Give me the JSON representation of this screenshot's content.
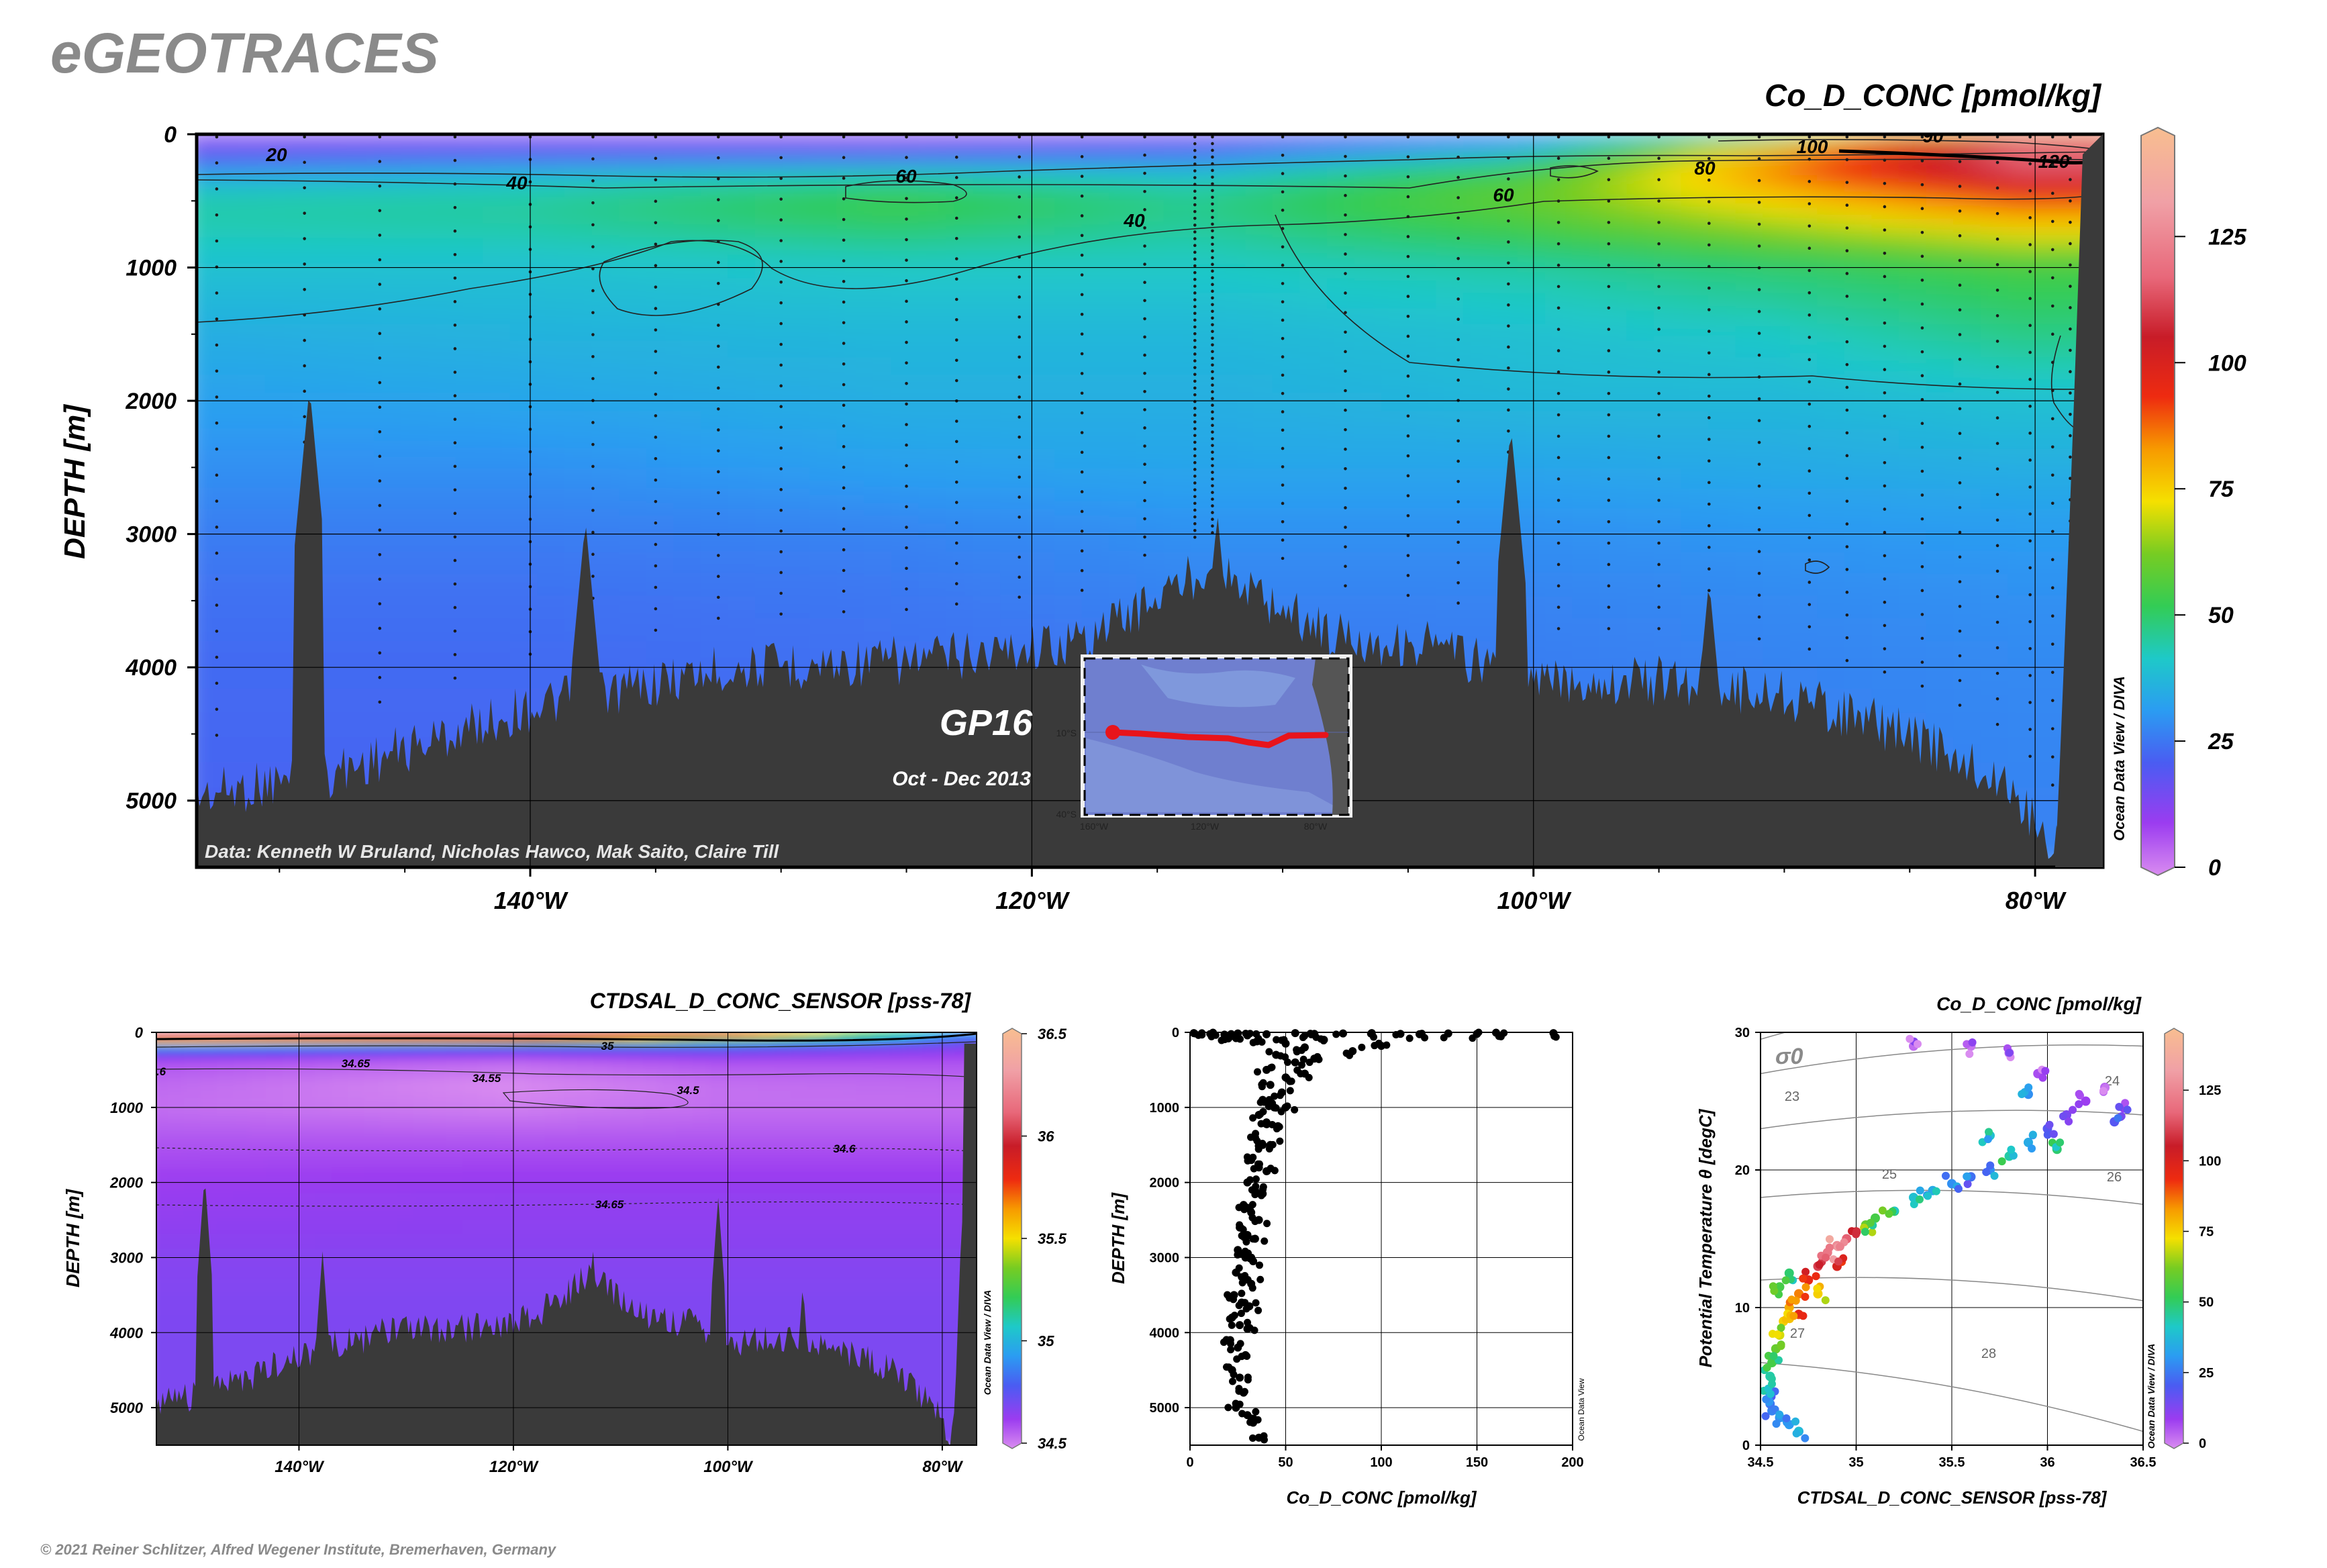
{
  "header": {
    "brand": "eGEOTRACES",
    "copyright": "© 2021 Reiner Schlitzer, Alfred Wegener Institute, Bremerhaven, Germany",
    "odv_label": "Ocean Data View / DIVA",
    "odv_label_short": "Ocean Data View"
  },
  "main_section": {
    "title": "Co_D_CONC [pmol/kg]",
    "ylabel": "DEPTH [m]",
    "ylim": [
      0,
      5500
    ],
    "y_ticks": [
      "0",
      "1000",
      "2000",
      "3000",
      "4000",
      "5000"
    ],
    "x_ticks": [
      "140°W",
      "120°W",
      "100°W",
      "80°W"
    ],
    "x_tick_values": [
      -140,
      -120,
      -100,
      -80
    ],
    "xlim": [
      -153.3,
      -77.3
    ],
    "colorbar_ticks": [
      "0",
      "25",
      "50",
      "75",
      "100",
      "125"
    ],
    "colorbar_values": [
      0,
      25,
      50,
      75,
      100,
      125
    ],
    "colorbar_range": [
      0,
      145
    ],
    "contour_labels": [
      "20",
      "40",
      "60",
      "40",
      "60",
      "80",
      "100",
      "120",
      "90"
    ],
    "credit": "Data: Kenneth W Bruland, Nicholas Hawco, Mak Saito, Claire Till",
    "cruise": "GP16",
    "period": "Oct - Dec 2013",
    "inset": {
      "lat_labels": [
        "10°S",
        "40°S"
      ],
      "lon_labels": [
        "160°W",
        "120°W",
        "80°W"
      ]
    }
  },
  "salinity_section": {
    "title": "CTDSAL_D_CONC_SENSOR [pss-78]",
    "ylabel": "DEPTH [m]",
    "y_ticks": [
      "0",
      "1000",
      "2000",
      "3000",
      "4000",
      "5000"
    ],
    "x_ticks": [
      "140°W",
      "120°W",
      "100°W",
      "80°W"
    ],
    "colorbar_ticks": [
      "34.5",
      "35",
      "35.5",
      "36",
      "36.5"
    ],
    "contour_labels": [
      "34.65",
      "34.55",
      "34.5",
      "34.6",
      "34.65",
      "35",
      ".6",
      "3"
    ]
  },
  "chart_data": [
    {
      "type": "heatmap",
      "name": "Co_D_CONC section",
      "x_unit": "longitude",
      "y_unit": "depth m",
      "z_profiles_depth": [
        0,
        50,
        150,
        300,
        500,
        700,
        1000,
        1500,
        2000,
        2500,
        3000,
        3500,
        4000,
        5000,
        5500
      ],
      "z_profiles": [
        {
          "lon": -152,
          "values": [
            12,
            14,
            18,
            34,
            45,
            44,
            40,
            36,
            33,
            30,
            27,
            25,
            24,
            23,
            23
          ]
        },
        {
          "lon": -140,
          "values": [
            12,
            14,
            20,
            38,
            46,
            45,
            40,
            37,
            34,
            30,
            27,
            25,
            24,
            23,
            23
          ]
        },
        {
          "lon": -125,
          "values": [
            10,
            12,
            22,
            42,
            55,
            50,
            42,
            38,
            36,
            33,
            28,
            26,
            25,
            24,
            24
          ]
        },
        {
          "lon": -113,
          "values": [
            12,
            15,
            25,
            40,
            48,
            46,
            42,
            38,
            36,
            34,
            30,
            28,
            26,
            25,
            25
          ]
        },
        {
          "lon": -100,
          "values": [
            18,
            28,
            40,
            55,
            60,
            55,
            45,
            40,
            38,
            34,
            30,
            28,
            27,
            26,
            26
          ]
        },
        {
          "lon": -90,
          "values": [
            30,
            60,
            80,
            85,
            75,
            65,
            50,
            42,
            38,
            35,
            31,
            29,
            28,
            27,
            27
          ]
        },
        {
          "lon": -80,
          "values": [
            60,
            110,
            120,
            110,
            90,
            75,
            55,
            48,
            40,
            36,
            32,
            30,
            29,
            28,
            28
          ]
        }
      ]
    },
    {
      "type": "heatmap",
      "name": "CTDSAL_D_CONC_SENSOR section",
      "x_unit": "longitude",
      "y_unit": "depth m",
      "z_profiles_depth": [
        0,
        50,
        120,
        200,
        400,
        700,
        1000,
        1500,
        2000,
        3000,
        4000,
        5500
      ],
      "z_profiles": [
        {
          "lon": -152,
          "values": [
            36.3,
            36.2,
            35.8,
            34.9,
            34.6,
            34.56,
            34.55,
            34.6,
            34.64,
            34.68,
            34.7,
            34.7
          ]
        },
        {
          "lon": -120,
          "values": [
            36.2,
            36.1,
            35.7,
            34.8,
            34.56,
            34.5,
            34.52,
            34.6,
            34.65,
            34.68,
            34.7,
            34.7
          ]
        },
        {
          "lon": -100,
          "values": [
            36.0,
            35.8,
            35.2,
            34.8,
            34.6,
            34.55,
            34.55,
            34.6,
            34.65,
            34.68,
            34.7,
            34.7
          ]
        },
        {
          "lon": -78,
          "values": [
            35.0,
            34.9,
            34.8,
            34.7,
            34.6,
            34.56,
            34.55,
            34.6,
            34.65,
            34.68,
            34.7,
            34.7
          ]
        }
      ]
    },
    {
      "type": "scatter",
      "name": "Co_D_CONC vs depth",
      "xlabel": "Co_D_CONC [pmol/kg]",
      "ylabel": "DEPTH [m]",
      "xlim": [
        0,
        200
      ],
      "ylim": [
        0,
        5500
      ],
      "x_ticks": [
        "0",
        "50",
        "100",
        "150",
        "200"
      ],
      "y_ticks": [
        "0",
        "1000",
        "2000",
        "3000",
        "4000",
        "5000"
      ],
      "points": [
        [
          2,
          10
        ],
        [
          6,
          20
        ],
        [
          12,
          5
        ],
        [
          18,
          30
        ],
        [
          25,
          15
        ],
        [
          30,
          40
        ],
        [
          40,
          25
        ],
        [
          55,
          10
        ],
        [
          65,
          20
        ],
        [
          80,
          15
        ],
        [
          95,
          10
        ],
        [
          110,
          20
        ],
        [
          120,
          25
        ],
        [
          135,
          15
        ],
        [
          150,
          20
        ],
        [
          160,
          5
        ],
        [
          190,
          10
        ],
        [
          20,
          80
        ],
        [
          35,
          120
        ],
        [
          50,
          150
        ],
        [
          60,
          200
        ],
        [
          70,
          100
        ],
        [
          85,
          250
        ],
        [
          100,
          180
        ],
        [
          45,
          300
        ],
        [
          55,
          400
        ],
        [
          65,
          350
        ],
        [
          40,
          500
        ],
        [
          50,
          600
        ],
        [
          60,
          550
        ],
        [
          42,
          700
        ],
        [
          48,
          800
        ],
        [
          38,
          900
        ],
        [
          44,
          1000
        ],
        [
          50,
          1000
        ],
        [
          36,
          1100
        ],
        [
          40,
          1200
        ],
        [
          46,
          1250
        ],
        [
          34,
          1400
        ],
        [
          38,
          1500
        ],
        [
          42,
          1500
        ],
        [
          32,
          1700
        ],
        [
          36,
          1800
        ],
        [
          40,
          1850
        ],
        [
          30,
          2000
        ],
        [
          34,
          2100
        ],
        [
          38,
          2150
        ],
        [
          28,
          2300
        ],
        [
          32,
          2400
        ],
        [
          36,
          2500
        ],
        [
          26,
          2600
        ],
        [
          30,
          2700
        ],
        [
          34,
          2750
        ],
        [
          25,
          2900
        ],
        [
          29,
          3000
        ],
        [
          33,
          3050
        ],
        [
          24,
          3200
        ],
        [
          28,
          3300
        ],
        [
          32,
          3350
        ],
        [
          23,
          3500
        ],
        [
          27,
          3600
        ],
        [
          31,
          3650
        ],
        [
          22,
          3800
        ],
        [
          26,
          3900
        ],
        [
          30,
          3950
        ],
        [
          21,
          4100
        ],
        [
          25,
          4200
        ],
        [
          29,
          4300
        ],
        [
          22,
          4500
        ],
        [
          26,
          4600
        ],
        [
          28,
          4800
        ],
        [
          24,
          5000
        ],
        [
          30,
          5100
        ],
        [
          33,
          5200
        ],
        [
          36,
          5400
        ]
      ]
    },
    {
      "type": "scatter",
      "name": "Potential temperature vs salinity colored by Co_D_CONC",
      "title": "Co_D_CONC [pmol/kg]",
      "xlabel": "CTDSAL_D_CONC_SENSOR [pss-78]",
      "ylabel": "Potential Temperature θ [degC]",
      "xlim": [
        34.5,
        36.5
      ],
      "ylim": [
        0,
        30
      ],
      "x_ticks": [
        "34.5",
        "35",
        "35.5",
        "36",
        "36.5"
      ],
      "y_ticks": [
        "0",
        "10",
        "20",
        "30"
      ],
      "isopycnal_label": "σ0",
      "isopycnals": [
        "23",
        "24",
        "25",
        "26",
        "27",
        "28"
      ],
      "colorbar_ticks": [
        "0",
        "25",
        "50",
        "75",
        "100",
        "125"
      ],
      "points": [
        [
          34.7,
          1.0,
          35
        ],
        [
          34.65,
          1.5,
          32
        ],
        [
          34.6,
          2.0,
          30
        ],
        [
          34.56,
          2.5,
          28
        ],
        [
          34.55,
          3.0,
          26
        ],
        [
          34.55,
          3.5,
          24
        ],
        [
          34.55,
          4.0,
          40
        ],
        [
          34.55,
          5.0,
          45
        ],
        [
          34.56,
          6.0,
          55
        ],
        [
          34.58,
          7.0,
          60
        ],
        [
          34.6,
          8.0,
          70
        ],
        [
          34.62,
          9.0,
          75
        ],
        [
          34.65,
          10.0,
          80
        ],
        [
          34.7,
          11.0,
          85
        ],
        [
          34.75,
          12.0,
          95
        ],
        [
          34.8,
          13.0,
          110
        ],
        [
          34.85,
          14.0,
          120
        ],
        [
          34.9,
          14.5,
          125
        ],
        [
          34.95,
          15.0,
          115
        ],
        [
          35.0,
          15.5,
          100
        ],
        [
          35.05,
          16.0,
          60
        ],
        [
          35.1,
          16.5,
          55
        ],
        [
          35.2,
          17.0,
          50
        ],
        [
          35.3,
          18.0,
          40
        ],
        [
          35.4,
          18.5,
          35
        ],
        [
          35.5,
          19.0,
          30
        ],
        [
          35.6,
          19.5,
          25
        ],
        [
          35.7,
          20.0,
          30
        ],
        [
          35.8,
          21.0,
          45
        ],
        [
          35.9,
          22.0,
          35
        ],
        [
          36.0,
          23.0,
          20
        ],
        [
          36.1,
          24.0,
          15
        ],
        [
          36.2,
          25.0,
          10
        ],
        [
          36.3,
          26.0,
          5
        ],
        [
          35.95,
          27.0,
          8
        ],
        [
          35.8,
          28.5,
          5
        ],
        [
          35.6,
          29.0,
          3
        ],
        [
          35.3,
          29.0,
          4
        ],
        [
          36.35,
          23.5,
          20
        ],
        [
          36.4,
          24.5,
          12
        ],
        [
          35.9,
          25.5,
          30
        ],
        [
          35.7,
          22.5,
          40
        ],
        [
          36.05,
          21.5,
          50
        ],
        [
          34.65,
          12.5,
          50
        ],
        [
          34.6,
          11.5,
          55
        ],
        [
          34.7,
          9.5,
          90
        ],
        [
          34.8,
          11.0,
          75
        ],
        [
          34.9,
          13.0,
          100
        ]
      ]
    }
  ],
  "colors": {
    "land": "#3a3a3a",
    "track": "#e8141b",
    "gray_title": "#8a8a8a"
  }
}
